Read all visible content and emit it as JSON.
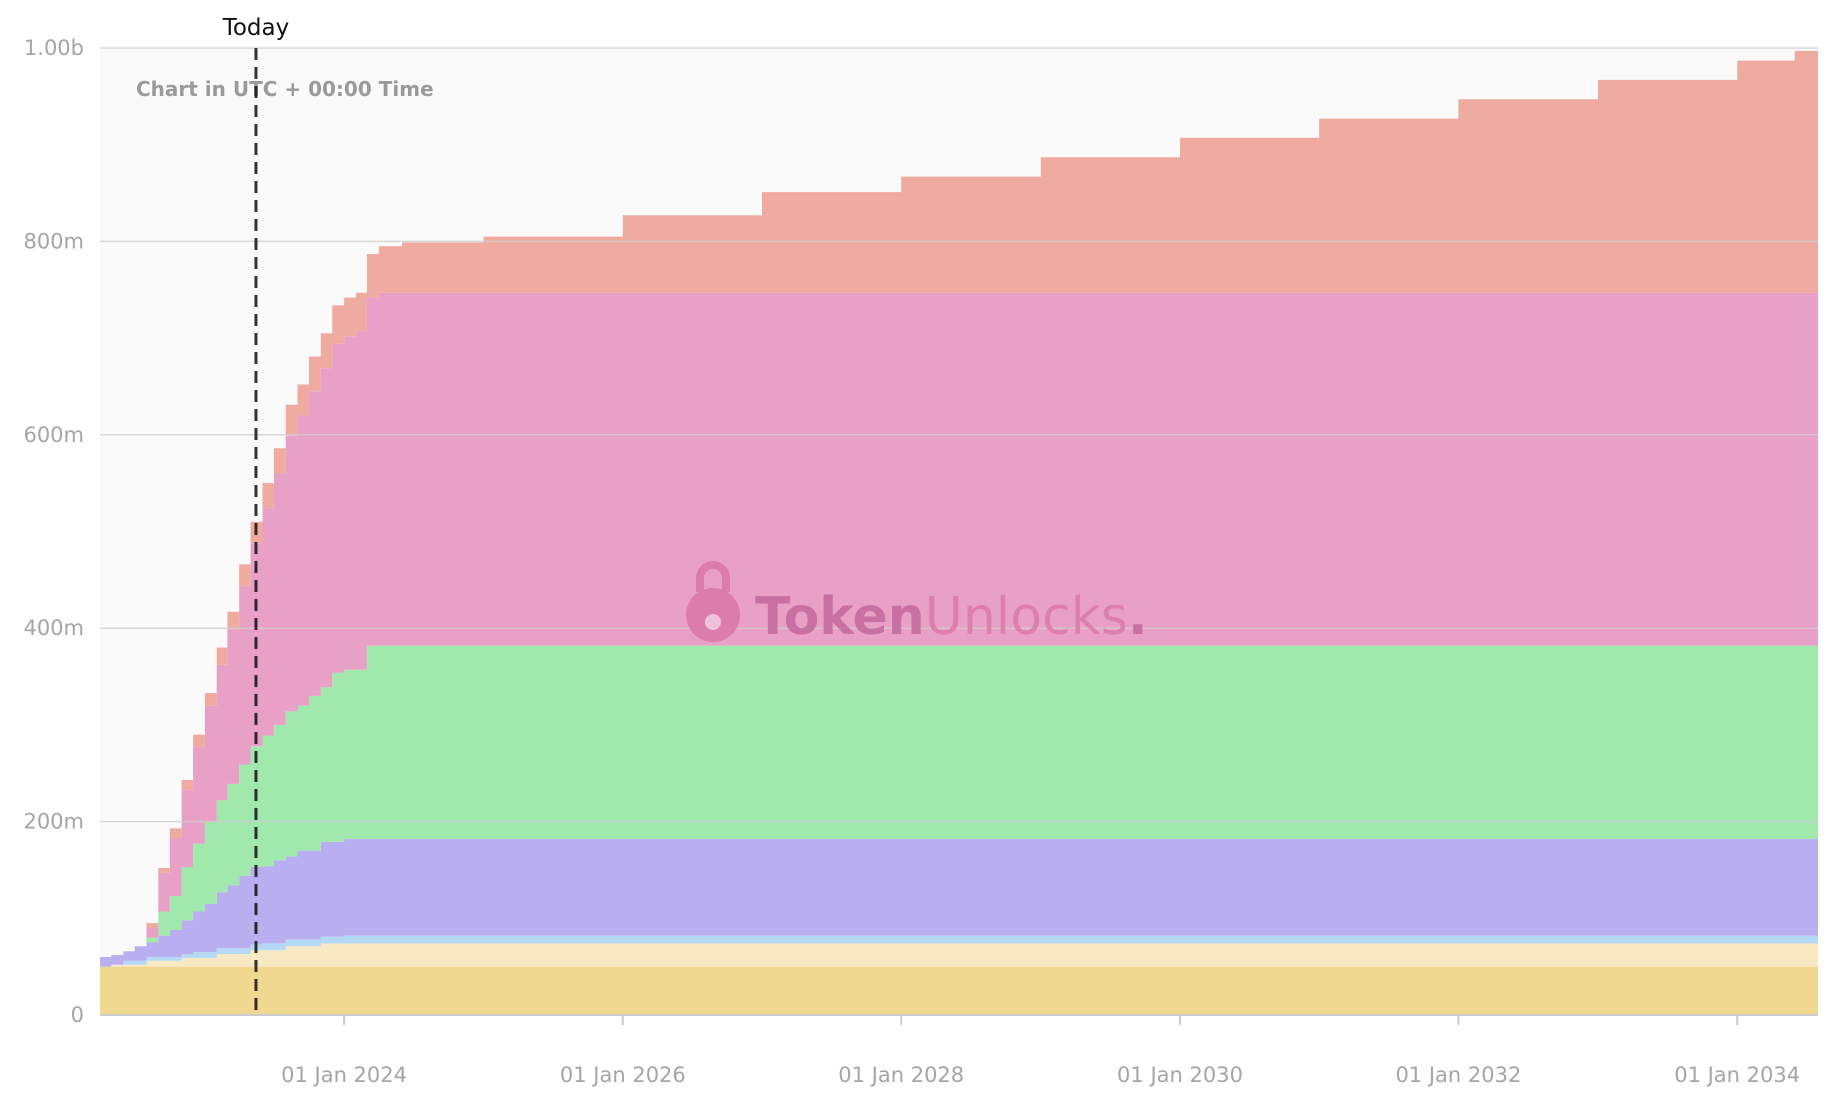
{
  "chart_data": {
    "type": "area",
    "stacked": true,
    "step": true,
    "today_label": "Today",
    "today_date": "2023-05-15",
    "note": "Chart in UTC + 00:00 Time",
    "watermark": {
      "part1": "Token",
      "part2": "Unlocks",
      "dot": "."
    },
    "x_range": [
      "2022-04-01",
      "2034-08-01"
    ],
    "ylim": [
      0,
      1000000000
    ],
    "y_ticks": [
      {
        "value": 0,
        "label": "0"
      },
      {
        "value": 200000000,
        "label": "200m"
      },
      {
        "value": 400000000,
        "label": "400m"
      },
      {
        "value": 600000000,
        "label": "600m"
      },
      {
        "value": 800000000,
        "label": "800m"
      },
      {
        "value": 1000000000,
        "label": "1.00b"
      }
    ],
    "x_ticks": [
      {
        "value": "2024-01-01",
        "label": "01 Jan 2024"
      },
      {
        "value": "2026-01-01",
        "label": "01 Jan 2026"
      },
      {
        "value": "2028-01-01",
        "label": "01 Jan 2028"
      },
      {
        "value": "2030-01-01",
        "label": "01 Jan 2030"
      },
      {
        "value": "2032-01-01",
        "label": "01 Jan 2032"
      },
      {
        "value": "2034-01-01",
        "label": "01 Jan 2034"
      }
    ],
    "grid": true,
    "legend": "none",
    "series": [
      {
        "color": "#f0d890",
        "points": [
          [
            "2022-04-01",
            50000000
          ],
          [
            "2034-08-01",
            50000000
          ]
        ]
      },
      {
        "color": "#f8e8c4",
        "points": [
          [
            "2022-04-01",
            0
          ],
          [
            "2022-05-01",
            2000000
          ],
          [
            "2022-08-01",
            6000000
          ],
          [
            "2022-11-01",
            9000000
          ],
          [
            "2023-02-01",
            13000000
          ],
          [
            "2023-05-01",
            17000000
          ],
          [
            "2023-08-01",
            21000000
          ],
          [
            "2023-11-01",
            24000000
          ],
          [
            "2034-08-01",
            24000000
          ]
        ]
      },
      {
        "color": "#b3d9f5",
        "points": [
          [
            "2022-04-01",
            0
          ],
          [
            "2022-06-01",
            4000000
          ],
          [
            "2022-12-01",
            6000000
          ],
          [
            "2023-06-01",
            7000000
          ],
          [
            "2024-01-01",
            8000000
          ],
          [
            "2034-08-01",
            10000000
          ]
        ]
      },
      {
        "color": "#b9aff0",
        "points": [
          [
            "2022-04-01",
            10000000
          ],
          [
            "2022-07-01",
            15000000
          ],
          [
            "2022-09-01",
            22000000
          ],
          [
            "2022-10-01",
            28000000
          ],
          [
            "2022-11-01",
            35000000
          ],
          [
            "2022-12-01",
            42000000
          ],
          [
            "2023-01-01",
            50000000
          ],
          [
            "2023-02-01",
            58000000
          ],
          [
            "2023-03-01",
            65000000
          ],
          [
            "2023-04-01",
            75000000
          ],
          [
            "2023-05-01",
            80000000
          ],
          [
            "2023-07-01",
            86000000
          ],
          [
            "2023-09-01",
            92000000
          ],
          [
            "2023-11-01",
            98000000
          ],
          [
            "2024-01-01",
            100000000
          ],
          [
            "2034-08-01",
            100000000
          ]
        ]
      },
      {
        "color": "#a0e8ac",
        "points": [
          [
            "2022-04-01",
            0
          ],
          [
            "2022-08-01",
            5000000
          ],
          [
            "2022-09-01",
            25000000
          ],
          [
            "2022-10-01",
            35000000
          ],
          [
            "2022-11-01",
            55000000
          ],
          [
            "2022-12-01",
            70000000
          ],
          [
            "2023-01-01",
            85000000
          ],
          [
            "2023-02-01",
            95000000
          ],
          [
            "2023-03-01",
            105000000
          ],
          [
            "2023-04-01",
            115000000
          ],
          [
            "2023-05-01",
            125000000
          ],
          [
            "2023-06-01",
            135000000
          ],
          [
            "2023-07-01",
            140000000
          ],
          [
            "2023-08-01",
            150000000
          ],
          [
            "2023-10-01",
            160000000
          ],
          [
            "2023-12-01",
            175000000
          ],
          [
            "2024-03-01",
            200000000
          ],
          [
            "2034-08-01",
            200000000
          ]
        ]
      },
      {
        "color": "#e9a0c7",
        "points": [
          [
            "2022-04-01",
            0
          ],
          [
            "2022-08-01",
            10000000
          ],
          [
            "2022-09-01",
            40000000
          ],
          [
            "2022-10-01",
            60000000
          ],
          [
            "2022-11-01",
            80000000
          ],
          [
            "2022-12-01",
            100000000
          ],
          [
            "2023-01-01",
            120000000
          ],
          [
            "2023-02-01",
            140000000
          ],
          [
            "2023-03-01",
            160000000
          ],
          [
            "2023-04-01",
            185000000
          ],
          [
            "2023-05-01",
            210000000
          ],
          [
            "2023-06-01",
            235000000
          ],
          [
            "2023-07-01",
            260000000
          ],
          [
            "2023-08-01",
            285000000
          ],
          [
            "2023-09-01",
            300000000
          ],
          [
            "2023-10-01",
            315000000
          ],
          [
            "2023-11-01",
            330000000
          ],
          [
            "2023-12-01",
            340000000
          ],
          [
            "2024-01-01",
            345000000
          ],
          [
            "2024-02-01",
            350000000
          ],
          [
            "2024-03-01",
            360000000
          ],
          [
            "2024-04-01",
            365000000
          ],
          [
            "2034-08-01",
            365000000
          ]
        ]
      },
      {
        "color": "#f0aba0",
        "points": [
          [
            "2022-04-01",
            0
          ],
          [
            "2022-08-01",
            5000000
          ],
          [
            "2022-10-01",
            10000000
          ],
          [
            "2022-12-01",
            13000000
          ],
          [
            "2023-02-01",
            18000000
          ],
          [
            "2023-04-01",
            22000000
          ],
          [
            "2023-06-01",
            26000000
          ],
          [
            "2023-08-01",
            32000000
          ],
          [
            "2023-10-01",
            36000000
          ],
          [
            "2023-12-01",
            40000000
          ],
          [
            "2024-03-01",
            45000000
          ],
          [
            "2024-04-01",
            48000000
          ],
          [
            "2024-06-01",
            52000000
          ],
          [
            "2025-01-01",
            58000000
          ],
          [
            "2026-01-01",
            80000000
          ],
          [
            "2027-01-01",
            104000000
          ],
          [
            "2028-01-01",
            120000000
          ],
          [
            "2029-01-01",
            140000000
          ],
          [
            "2030-01-01",
            160000000
          ],
          [
            "2031-01-01",
            180000000
          ],
          [
            "2032-01-01",
            200000000
          ],
          [
            "2033-01-01",
            220000000
          ],
          [
            "2034-01-01",
            240000000
          ],
          [
            "2034-06-01",
            250000000
          ],
          [
            "2034-08-01",
            250000000
          ]
        ]
      }
    ]
  }
}
